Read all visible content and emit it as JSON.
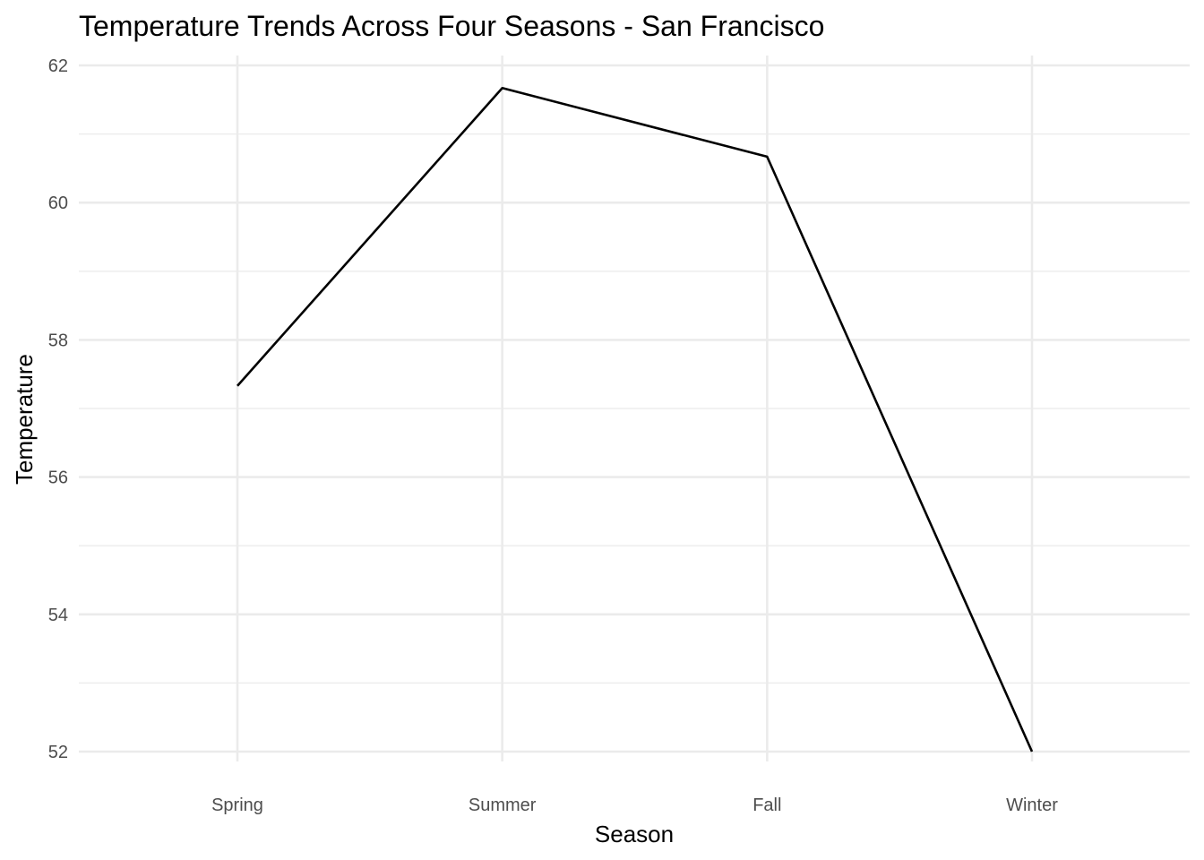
{
  "chart_data": {
    "type": "line",
    "title": "Temperature Trends Across Four Seasons - San Francisco",
    "xlabel": "Season",
    "ylabel": "Temperature",
    "categories": [
      "Spring",
      "Summer",
      "Fall",
      "Winter"
    ],
    "values": [
      57.33,
      61.67,
      60.67,
      52.0
    ],
    "ylim": [
      51.6,
      62.2
    ],
    "yticks": [
      52,
      54,
      56,
      58,
      60,
      62
    ],
    "grid": true,
    "legend": "none",
    "colors": {
      "line": "#000000",
      "grid": "#ebebeb"
    }
  }
}
